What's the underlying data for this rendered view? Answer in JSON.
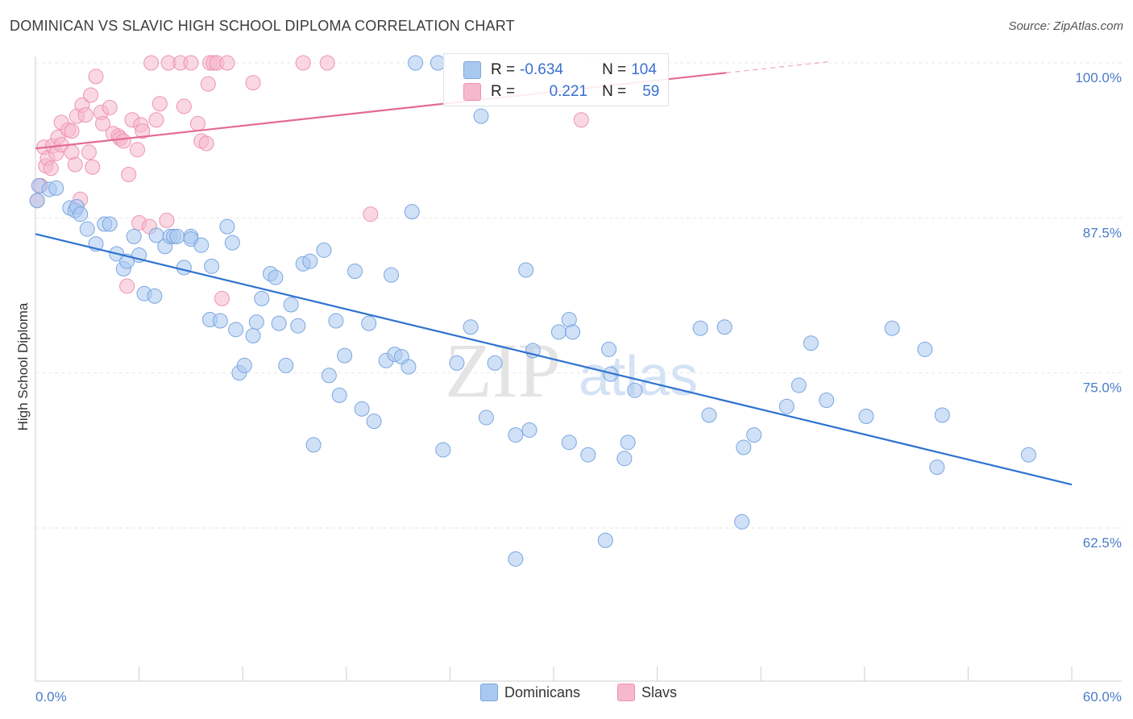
{
  "header": {
    "title": "DOMINICAN VS SLAVIC HIGH SCHOOL DIPLOMA CORRELATION CHART",
    "source": "Source: ZipAtlas.com"
  },
  "stats": {
    "dominicans": {
      "r_label": "R =",
      "r_value": "-0.634",
      "n_label": "N =",
      "n_value": "104"
    },
    "slavs": {
      "r_label": "R =",
      "r_value": "0.221",
      "n_label": "N =",
      "n_value": "59"
    }
  },
  "legend": {
    "dominicans": "Dominicans",
    "slavs": "Slavs"
  },
  "watermark": {
    "zip": "ZIP",
    "atlas": "atlas"
  },
  "colors": {
    "dominicans_fill": "#a9c8f0",
    "dominicans_stroke": "#7aa6e0",
    "dominicans_line": "#2f72d0",
    "slavs_fill": "#f6b8cc",
    "slavs_stroke": "#ee93b0",
    "slavs_line": "#e46a92",
    "tick_text": "#4a7cc9",
    "grid": "#e6e6e6"
  },
  "chart_data": {
    "type": "scatter",
    "title": "DOMINICAN VS SLAVIC HIGH SCHOOL DIPLOMA CORRELATION CHART",
    "xlabel": "",
    "ylabel": "High School Diploma",
    "xlim": [
      0,
      60
    ],
    "ylim": [
      50,
      101
    ],
    "x_tick_labels": [
      "0.0%",
      "60.0%"
    ],
    "y_ticks": [
      62.5,
      75.0,
      87.5,
      100.0
    ],
    "y_tick_labels": [
      "62.5%",
      "75.0%",
      "87.5%",
      "100.0%"
    ],
    "grid": true,
    "legend_position": "bottom-center",
    "series": [
      {
        "name": "Dominicans",
        "trend": {
          "x": [
            0,
            60
          ],
          "y": [
            86.2,
            66.0
          ]
        },
        "points": [
          [
            0.1,
            88.9
          ],
          [
            0.2,
            90.1
          ],
          [
            0.8,
            89.8
          ],
          [
            1.2,
            89.9
          ],
          [
            2.0,
            88.3
          ],
          [
            2.3,
            88.1
          ],
          [
            2.4,
            88.4
          ],
          [
            2.6,
            87.8
          ],
          [
            3.0,
            86.6
          ],
          [
            3.5,
            85.4
          ],
          [
            4.0,
            87.0
          ],
          [
            4.3,
            87.0
          ],
          [
            4.7,
            84.6
          ],
          [
            5.1,
            83.4
          ],
          [
            5.3,
            84.0
          ],
          [
            5.7,
            86.0
          ],
          [
            6.0,
            84.5
          ],
          [
            6.3,
            81.4
          ],
          [
            6.9,
            81.2
          ],
          [
            7.0,
            86.1
          ],
          [
            7.5,
            85.2
          ],
          [
            7.8,
            86.0
          ],
          [
            8.0,
            86.0
          ],
          [
            8.2,
            86.0
          ],
          [
            8.6,
            83.5
          ],
          [
            9.0,
            86.0
          ],
          [
            9.0,
            85.8
          ],
          [
            9.6,
            85.3
          ],
          [
            10.1,
            79.3
          ],
          [
            10.2,
            83.6
          ],
          [
            10.7,
            79.2
          ],
          [
            11.1,
            86.8
          ],
          [
            11.4,
            85.5
          ],
          [
            11.6,
            78.5
          ],
          [
            11.8,
            75.0
          ],
          [
            12.1,
            75.6
          ],
          [
            12.6,
            78.0
          ],
          [
            12.8,
            79.1
          ],
          [
            13.1,
            81.0
          ],
          [
            13.6,
            83.0
          ],
          [
            13.9,
            82.7
          ],
          [
            14.1,
            79.0
          ],
          [
            14.5,
            75.6
          ],
          [
            14.8,
            80.5
          ],
          [
            15.2,
            78.8
          ],
          [
            15.5,
            83.8
          ],
          [
            15.9,
            84.0
          ],
          [
            16.1,
            69.2
          ],
          [
            16.7,
            84.9
          ],
          [
            17.0,
            74.8
          ],
          [
            17.4,
            79.2
          ],
          [
            17.6,
            73.2
          ],
          [
            17.9,
            76.4
          ],
          [
            18.5,
            83.2
          ],
          [
            18.9,
            72.1
          ],
          [
            19.3,
            79.0
          ],
          [
            19.6,
            71.1
          ],
          [
            20.3,
            76.0
          ],
          [
            20.6,
            82.9
          ],
          [
            20.8,
            76.5
          ],
          [
            21.2,
            76.3
          ],
          [
            21.6,
            75.5
          ],
          [
            21.8,
            88.0
          ],
          [
            22.0,
            100.0
          ],
          [
            23.3,
            100.0
          ],
          [
            23.6,
            68.8
          ],
          [
            24.4,
            75.8
          ],
          [
            25.2,
            78.7
          ],
          [
            25.8,
            95.7
          ],
          [
            26.1,
            71.4
          ],
          [
            26.6,
            75.8
          ],
          [
            27.8,
            70.0
          ],
          [
            27.8,
            60.0
          ],
          [
            28.4,
            83.3
          ],
          [
            28.6,
            70.4
          ],
          [
            28.8,
            76.8
          ],
          [
            30.3,
            78.3
          ],
          [
            30.9,
            69.4
          ],
          [
            30.9,
            79.3
          ],
          [
            31.1,
            78.3
          ],
          [
            32.0,
            68.4
          ],
          [
            33.0,
            61.5
          ],
          [
            33.2,
            76.9
          ],
          [
            33.3,
            74.9
          ],
          [
            34.1,
            68.1
          ],
          [
            34.3,
            69.4
          ],
          [
            34.7,
            73.6
          ],
          [
            38.5,
            78.6
          ],
          [
            39.0,
            71.6
          ],
          [
            39.9,
            78.7
          ],
          [
            40.9,
            63.0
          ],
          [
            41.0,
            69.0
          ],
          [
            41.6,
            70.0
          ],
          [
            43.5,
            72.3
          ],
          [
            44.2,
            74.0
          ],
          [
            44.9,
            77.4
          ],
          [
            45.8,
            72.8
          ],
          [
            48.1,
            71.5
          ],
          [
            49.6,
            78.6
          ],
          [
            51.5,
            76.9
          ],
          [
            52.2,
            67.4
          ],
          [
            52.5,
            71.6
          ],
          [
            57.5,
            68.4
          ]
        ]
      },
      {
        "name": "Slavs",
        "trend": {
          "x": [
            0,
            40
          ],
          "y": [
            93.1,
            99.2
          ]
        },
        "trend_extension": {
          "x": [
            40,
            46
          ],
          "y": [
            99.2,
            100.1
          ]
        },
        "points": [
          [
            0.1,
            88.9
          ],
          [
            0.3,
            90.1
          ],
          [
            0.5,
            93.2
          ],
          [
            0.6,
            91.7
          ],
          [
            0.7,
            92.3
          ],
          [
            0.9,
            91.5
          ],
          [
            1.0,
            93.3
          ],
          [
            1.2,
            92.7
          ],
          [
            1.3,
            94.0
          ],
          [
            1.5,
            95.2
          ],
          [
            1.5,
            93.4
          ],
          [
            1.9,
            94.6
          ],
          [
            2.1,
            94.5
          ],
          [
            2.1,
            92.8
          ],
          [
            2.3,
            91.8
          ],
          [
            2.4,
            95.7
          ],
          [
            2.6,
            89.0
          ],
          [
            2.7,
            96.6
          ],
          [
            2.9,
            95.8
          ],
          [
            3.1,
            92.8
          ],
          [
            3.2,
            97.4
          ],
          [
            3.3,
            91.6
          ],
          [
            3.5,
            98.9
          ],
          [
            3.8,
            96.0
          ],
          [
            3.9,
            95.1
          ],
          [
            4.3,
            96.4
          ],
          [
            4.5,
            94.3
          ],
          [
            4.8,
            94.1
          ],
          [
            4.9,
            93.9
          ],
          [
            5.1,
            93.7
          ],
          [
            5.3,
            82.0
          ],
          [
            5.4,
            91.0
          ],
          [
            5.6,
            95.4
          ],
          [
            5.9,
            93.0
          ],
          [
            6.0,
            87.1
          ],
          [
            6.1,
            95.0
          ],
          [
            6.2,
            94.5
          ],
          [
            6.6,
            86.8
          ],
          [
            6.7,
            100.0
          ],
          [
            7.0,
            95.4
          ],
          [
            7.2,
            96.7
          ],
          [
            7.6,
            87.3
          ],
          [
            7.7,
            100.0
          ],
          [
            8.4,
            100.0
          ],
          [
            8.6,
            96.5
          ],
          [
            9.0,
            100.0
          ],
          [
            9.4,
            95.1
          ],
          [
            9.6,
            93.7
          ],
          [
            9.9,
            93.5
          ],
          [
            10.0,
            98.3
          ],
          [
            10.1,
            100.0
          ],
          [
            10.3,
            100.0
          ],
          [
            10.5,
            100.0
          ],
          [
            10.8,
            81.0
          ],
          [
            11.1,
            100.0
          ],
          [
            12.6,
            98.4
          ],
          [
            15.5,
            100.0
          ],
          [
            16.9,
            100.0
          ],
          [
            19.4,
            87.8
          ],
          [
            31.6,
            95.4
          ]
        ]
      }
    ]
  }
}
